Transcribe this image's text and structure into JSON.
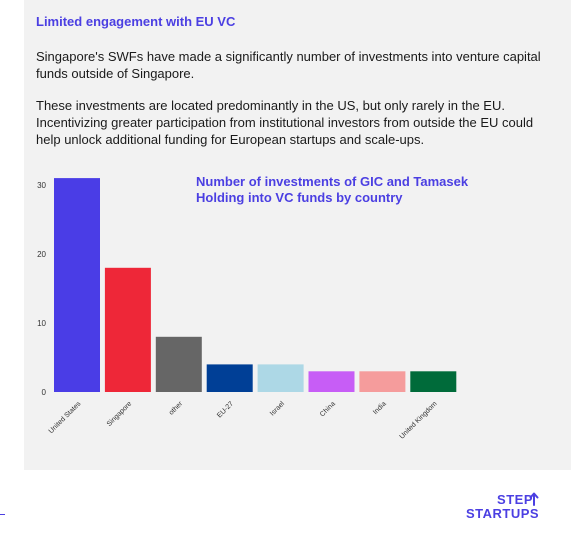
{
  "header": {
    "title": "Limited engagement with EU VC"
  },
  "body": {
    "paragraph1": "Singapore's SWFs have made a significantly number of investments into venture capital funds outside of Singapore.",
    "paragraph2": "These investments are located predominantly in the US, but only rarely in the EU. Incentivizing greater participation from institutional investors from outside the EU could help unlock additional funding for European startups and scale-ups."
  },
  "chart_data": {
    "type": "bar",
    "title": "Number of investments of GIC and Tamasek Holding into VC funds by country",
    "categories": [
      "United States",
      "Singapore",
      "other",
      "EU-27",
      "Israel",
      "China",
      "India",
      "United Kingdom"
    ],
    "values": [
      31,
      18,
      8,
      4,
      4,
      3,
      3,
      3
    ],
    "colors": [
      "#4a3de6",
      "#ee2738",
      "#666666",
      "#003f96",
      "#add8e6",
      "#c75df6",
      "#f59c9c",
      "#006b3a"
    ],
    "ylim": [
      0,
      32
    ],
    "yticks": [
      0,
      10,
      20,
      30
    ],
    "grid": false,
    "legend": "none"
  },
  "footer": {
    "logo_line1": "STEP",
    "logo_line2_a": "STARTU",
    "logo_line2_b": "PS",
    "logo_arrow_icon": "up-arrow-icon",
    "brand_color": "#4b3fe2"
  }
}
